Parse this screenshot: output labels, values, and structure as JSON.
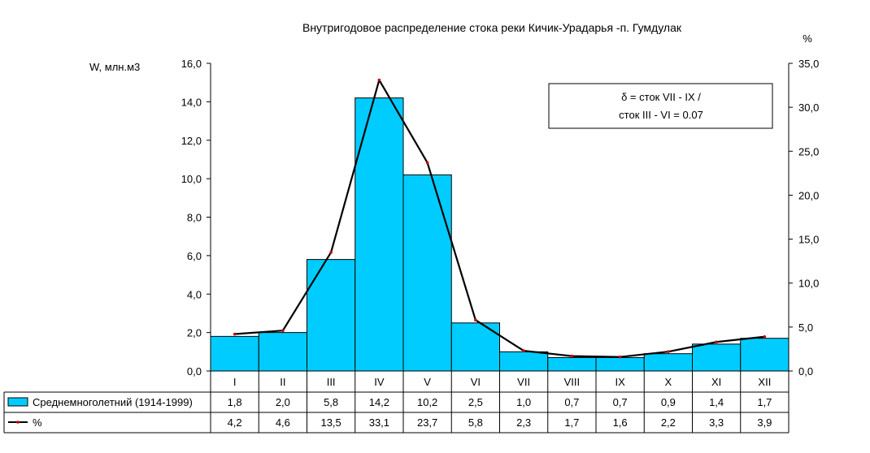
{
  "chart_data": {
    "type": "bar",
    "title": "Внутригодовое распределение стока реки Кичик-Урадарья -п. Гумдулак",
    "ylabel_left": "W, млн.м3",
    "ylabel_right": "%",
    "categories": [
      "I",
      "II",
      "III",
      "IV",
      "V",
      "VI",
      "VII",
      "VIII",
      "IX",
      "X",
      "XI",
      "XII"
    ],
    "ylim_left": [
      0,
      16
    ],
    "yticks_left": [
      "0,0",
      "2,0",
      "4,0",
      "6,0",
      "8,0",
      "10,0",
      "12,0",
      "14,0",
      "16,0"
    ],
    "ylim_right": [
      0,
      35
    ],
    "yticks_right": [
      "0,0",
      "5,0",
      "10,0",
      "15,0",
      "20,0",
      "25,0",
      "30,0",
      "35,0"
    ],
    "series": [
      {
        "name": "Среднемноголетний (1914-1999)",
        "type": "bar",
        "axis": "left",
        "color": "#00ccff",
        "values": [
          1.8,
          2.0,
          5.8,
          14.2,
          10.2,
          2.5,
          1.0,
          0.7,
          0.7,
          0.9,
          1.4,
          1.7
        ],
        "labels": [
          "1,8",
          "2,0",
          "5,8",
          "14,2",
          "10,2",
          "2,5",
          "1,0",
          "0,7",
          "0,7",
          "0,9",
          "1,4",
          "1,7"
        ]
      },
      {
        "name": "%",
        "type": "line",
        "axis": "right",
        "color": "#000000",
        "values": [
          4.2,
          4.6,
          13.5,
          33.1,
          23.7,
          5.8,
          2.3,
          1.7,
          1.6,
          2.2,
          3.3,
          3.9
        ],
        "labels": [
          "4,2",
          "4,6",
          "13,5",
          "33,1",
          "23,7",
          "5,8",
          "2,3",
          "1,7",
          "1,6",
          "2,2",
          "3,3",
          "3,9"
        ]
      }
    ],
    "annotation": [
      "δ = сток VII - IX /",
      "сток III - VI = 0.07"
    ],
    "grid": false,
    "legend": "data-table"
  }
}
